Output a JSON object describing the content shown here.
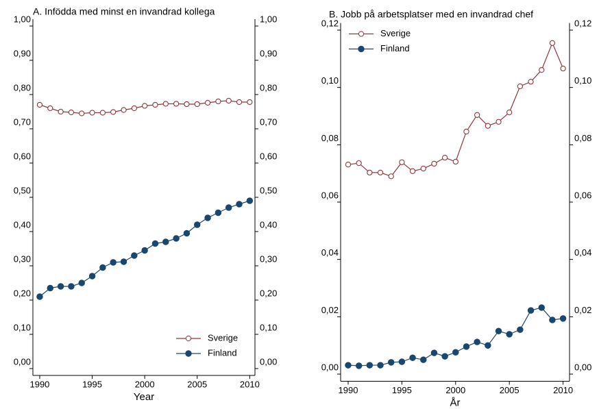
{
  "chart_data": [
    {
      "type": "line",
      "title": "A. Infödda med minst en invandrad kollega",
      "x_label": "Year",
      "x": [
        1990,
        1991,
        1992,
        1993,
        1994,
        1995,
        1996,
        1997,
        1998,
        1999,
        2000,
        2001,
        2002,
        2003,
        2004,
        2005,
        2006,
        2007,
        2008,
        2009,
        2010
      ],
      "series": [
        {
          "name": "Sverige",
          "color": "#90353b",
          "marker": "hollow",
          "values": [
            0.77,
            0.76,
            0.75,
            0.748,
            0.745,
            0.747,
            0.747,
            0.749,
            0.755,
            0.76,
            0.767,
            0.77,
            0.773,
            0.773,
            0.772,
            0.772,
            0.776,
            0.78,
            0.782,
            0.778,
            0.778
          ]
        },
        {
          "name": "Finland",
          "color": "#1a476f",
          "marker": "filled",
          "values": [
            0.21,
            0.235,
            0.24,
            0.24,
            0.25,
            0.27,
            0.295,
            0.31,
            0.312,
            0.33,
            0.345,
            0.365,
            0.37,
            0.38,
            0.395,
            0.42,
            0.44,
            0.455,
            0.47,
            0.48,
            0.49
          ]
        }
      ],
      "xlim": [
        1989.35,
        2010.5
      ],
      "xticks": [
        1990,
        1995,
        2000,
        2005,
        2010
      ],
      "ylim": [
        -0.02,
        1.02
      ],
      "yticks": [
        {
          "value": 0,
          "label": "0,00"
        },
        {
          "value": 0.1,
          "label": "0,10"
        },
        {
          "value": 0.2,
          "label": "0,20"
        },
        {
          "value": 0.3,
          "label": "0,30"
        },
        {
          "value": 0.4,
          "label": "0,40"
        },
        {
          "value": 0.5,
          "label": "0,50"
        },
        {
          "value": 0.6,
          "label": "0,60"
        },
        {
          "value": 0.7,
          "label": "0,70"
        },
        {
          "value": 0.8,
          "label": "0,80"
        },
        {
          "value": 0.9,
          "label": "0,90"
        },
        {
          "value": 1,
          "label": "1,00"
        }
      ],
      "legend": "bottom-right",
      "grid": false
    },
    {
      "type": "line",
      "title": "B. Jobb på arbetsplatser med en invandrad chef",
      "x_label": "År",
      "x": [
        1990,
        1991,
        1992,
        1993,
        1994,
        1995,
        1996,
        1997,
        1998,
        1999,
        2000,
        2001,
        2002,
        2003,
        2004,
        2005,
        2006,
        2007,
        2008,
        2009,
        2010
      ],
      "series": [
        {
          "name": "Sverige",
          "color": "#90353b",
          "marker": "hollow",
          "values": [
            0.0731,
            0.0736,
            0.0703,
            0.0703,
            0.069,
            0.0739,
            0.0708,
            0.0717,
            0.0734,
            0.0755,
            0.0741,
            0.0846,
            0.0904,
            0.0866,
            0.088,
            0.0913,
            0.1004,
            0.102,
            0.1061,
            0.1155,
            0.1066
          ]
        },
        {
          "name": "Finland",
          "color": "#1a476f",
          "marker": "filled",
          "values": [
            0.0031,
            0.0029,
            0.0031,
            0.0031,
            0.0041,
            0.0043,
            0.0057,
            0.005,
            0.0074,
            0.0062,
            0.0076,
            0.0096,
            0.0112,
            0.01,
            0.015,
            0.0139,
            0.0155,
            0.0222,
            0.0232,
            0.0189,
            0.0194
          ]
        }
      ],
      "xlim": [
        1989.3,
        2010.6
      ],
      "xticks": [
        1990,
        1995,
        2000,
        2005,
        2010
      ],
      "ylim": [
        -0.0025,
        0.1225
      ],
      "yticks": [
        {
          "value": 0,
          "label": "0,00"
        },
        {
          "value": 0.02,
          "label": "0,02"
        },
        {
          "value": 0.04,
          "label": "0,04"
        },
        {
          "value": 0.06,
          "label": "0,06"
        },
        {
          "value": 0.08,
          "label": "0,08"
        },
        {
          "value": 0.1,
          "label": "0,10"
        },
        {
          "value": 0.12,
          "label": "0,12"
        }
      ],
      "legend": "top-left",
      "grid": false
    }
  ]
}
